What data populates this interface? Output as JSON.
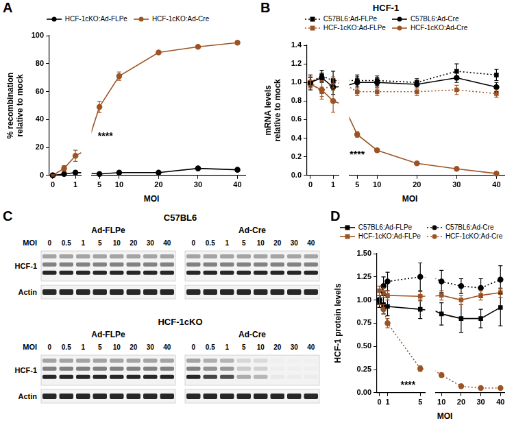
{
  "chart_data": [
    {
      "type": "line",
      "panel_label": "A",
      "x_label": "MOI",
      "y_label": [
        "% recombination",
        "relative to mock"
      ],
      "x": [
        0,
        0.5,
        1,
        5,
        10,
        20,
        30,
        40
      ],
      "x_segments": [
        {
          "xlim": [
            -0.15,
            1.25
          ],
          "xticks": [
            0,
            1
          ]
        },
        {
          "xlim": [
            3,
            42
          ],
          "xticks": [
            5,
            10,
            20,
            30,
            40
          ]
        }
      ],
      "ylim": [
        0,
        100
      ],
      "yticks": [
        0,
        20,
        40,
        60,
        80,
        100
      ],
      "grid": false,
      "legend": "top",
      "series": [
        {
          "name": "HCF-1cKO:Ad-FLPe",
          "color": "#000000",
          "marker": "circle",
          "line_style": "solid",
          "values": [
            0,
            1,
            2,
            1,
            2,
            2,
            5,
            4
          ],
          "errors": [
            0.5,
            0.5,
            1,
            0.5,
            0.5,
            0.5,
            1,
            1
          ]
        },
        {
          "name": "HCF-1cKO:Ad-Cre",
          "color": "#9c5424",
          "marker": "circle",
          "line_style": "solid",
          "values": [
            0,
            5,
            14,
            49,
            71,
            88,
            92,
            95
          ],
          "errors": [
            0.5,
            2,
            4,
            4,
            3,
            1,
            1,
            1
          ]
        }
      ],
      "annotations": [
        {
          "text": "****",
          "x": 6.5,
          "y": 28
        }
      ]
    },
    {
      "type": "line",
      "panel_label": "B",
      "title": "HCF-1",
      "x_label": "MOI",
      "y_label": [
        "mRNA levels",
        "relative to mock"
      ],
      "x": [
        0,
        0.5,
        1,
        5,
        10,
        20,
        30,
        40
      ],
      "x_segments": [
        {
          "xlim": [
            -0.15,
            1.25
          ],
          "xticks": [
            0,
            1
          ]
        },
        {
          "xlim": [
            3,
            42
          ],
          "xticks": [
            5,
            10,
            20,
            30,
            40
          ]
        }
      ],
      "ylim": [
        0,
        1.4
      ],
      "yticks": [
        {
          "value": 0,
          "label": "0.0"
        },
        0.2,
        0.4,
        0.6,
        0.8,
        {
          "value": 1,
          "label": "1.0"
        },
        1.2,
        1.4
      ],
      "grid": false,
      "legend": "top",
      "series": [
        {
          "name": "C57BL6:Ad-FLPe",
          "color": "#000000",
          "marker": "square",
          "line_style": "dotted",
          "values": [
            1.0,
            1.07,
            1.02,
            1.02,
            1.02,
            1.0,
            1.12,
            1.08
          ],
          "errors": [
            0.05,
            0.06,
            0.1,
            0.06,
            0.05,
            0.04,
            0.08,
            0.06
          ]
        },
        {
          "name": "C57BL6:Ad-Cre",
          "color": "#000000",
          "marker": "circle",
          "line_style": "solid",
          "values": [
            1.0,
            1.05,
            0.95,
            1.0,
            1.0,
            0.98,
            1.05,
            0.95
          ],
          "errors": [
            0.08,
            0.05,
            0.08,
            0.06,
            0.05,
            0.04,
            0.05,
            0.05
          ]
        },
        {
          "name": "HCF-1cKO:Ad-FLPe",
          "color": "#9c5424",
          "marker": "square",
          "line_style": "dotted",
          "values": [
            1.0,
            0.9,
            1.0,
            0.9,
            0.9,
            0.9,
            0.92,
            0.88
          ],
          "errors": [
            0.06,
            0.05,
            0.06,
            0.04,
            0.04,
            0.04,
            0.05,
            0.04
          ]
        },
        {
          "name": "HCF-1cKO:Ad-Cre",
          "color": "#9c5424",
          "marker": "circle",
          "line_style": "solid",
          "values": [
            0.98,
            0.92,
            0.8,
            0.44,
            0.27,
            0.13,
            0.07,
            0.02
          ],
          "errors": [
            0.04,
            0.1,
            0.12,
            0.03,
            0.02,
            0.01,
            0.01,
            0.01
          ]
        }
      ],
      "annotations": [
        {
          "text": "****",
          "x": 5,
          "y": 0.22
        }
      ]
    },
    {
      "type": "line",
      "panel_label": "D",
      "x_label": "MOI",
      "y_label": "HCF-1 protein levels",
      "x": [
        0,
        0.5,
        1,
        5,
        10,
        20,
        30,
        40
      ],
      "x_segments": [
        {
          "xlim": [
            -0.3,
            5.6
          ],
          "xticks": [
            0,
            1,
            5
          ]
        },
        {
          "xlim": [
            7,
            42
          ],
          "xticks": [
            10,
            20,
            30,
            40
          ]
        }
      ],
      "ylim": [
        0,
        1.5
      ],
      "yticks": [
        {
          "value": 0,
          "label": "0.00"
        },
        {
          "value": 0.25,
          "label": "0.25"
        },
        {
          "value": 0.5,
          "label": "0.50"
        },
        {
          "value": 0.75,
          "label": "0.75"
        },
        {
          "value": 1,
          "label": "1.00"
        },
        {
          "value": 1.25,
          "label": "1.25"
        },
        {
          "value": 1.5,
          "label": "1.50"
        }
      ],
      "grid": false,
      "legend": "top",
      "series": [
        {
          "name": "C57BL6:Ad-FLPe",
          "color": "#000000",
          "marker": "square",
          "line_style": "solid",
          "values": [
            0.97,
            0.95,
            0.93,
            0.9,
            0.85,
            0.8,
            0.8,
            0.92
          ],
          "errors": [
            0.05,
            0.1,
            0.1,
            0.1,
            0.12,
            0.15,
            0.1,
            0.2
          ]
        },
        {
          "name": "C57BL6:Ad-Cre",
          "color": "#000000",
          "marker": "circle",
          "line_style": "dotted",
          "values": [
            1.0,
            1.15,
            1.2,
            1.25,
            1.2,
            1.15,
            1.13,
            1.22
          ],
          "errors": [
            0.05,
            0.1,
            0.1,
            0.15,
            0.12,
            0.08,
            0.1,
            0.15
          ]
        },
        {
          "name": "HCF-1cKO:Ad-FLPe",
          "color": "#9c5424",
          "marker": "square",
          "line_style": "solid",
          "values": [
            1.1,
            1.08,
            1.05,
            1.04,
            1.05,
            1.0,
            1.05,
            1.08
          ],
          "errors": [
            0.05,
            0.05,
            0.05,
            0.05,
            0.05,
            0.05,
            0.05,
            0.05
          ]
        },
        {
          "name": "HCF-1cKO:Ad-Cre",
          "color": "#9c5424",
          "marker": "circle",
          "line_style": "dotted",
          "values": [
            1.0,
            0.9,
            0.75,
            0.26,
            0.19,
            0.07,
            0.05,
            0.05
          ],
          "errors": [
            0.05,
            0.05,
            0.05,
            0.03,
            0.02,
            0.01,
            0.01,
            0.01
          ]
        }
      ],
      "annotations": [
        {
          "text": "****",
          "x": 3.5,
          "y": 0.08
        }
      ]
    }
  ],
  "blot_panel": {
    "panel_label": "C",
    "lane_label": "MOI",
    "lanes": [
      0,
      0.5,
      1,
      5,
      10,
      20,
      30,
      40
    ],
    "rows": [
      "HCF-1",
      "Actin"
    ],
    "groups": [
      {
        "title": "C57BL6",
        "blots": [
          {
            "title": "Ad-FLPe",
            "band_intensity": [
              [
                1,
                1,
                1,
                1,
                1,
                1,
                1,
                1
              ],
              [
                1,
                1,
                1,
                1,
                1,
                1,
                1,
                1
              ]
            ]
          },
          {
            "title": "Ad-Cre",
            "band_intensity": [
              [
                1,
                1,
                1,
                1,
                1,
                1,
                1,
                1
              ],
              [
                1,
                1,
                1,
                1,
                1,
                1,
                1,
                1
              ]
            ]
          }
        ]
      },
      {
        "title": "HCF-1cKO",
        "blots": [
          {
            "title": "Ad-FLPe",
            "band_intensity": [
              [
                1,
                1,
                1,
                1,
                1,
                1,
                1,
                1
              ],
              [
                1,
                1,
                1,
                1,
                1,
                1,
                1,
                1
              ]
            ]
          },
          {
            "title": "Ad-Cre",
            "band_intensity": [
              [
                1,
                0.85,
                0.8,
                0.35,
                0.3,
                0.05,
                0.03,
                0.03
              ],
              [
                1,
                1,
                1,
                1,
                1,
                1,
                1,
                1
              ]
            ]
          }
        ]
      }
    ]
  }
}
